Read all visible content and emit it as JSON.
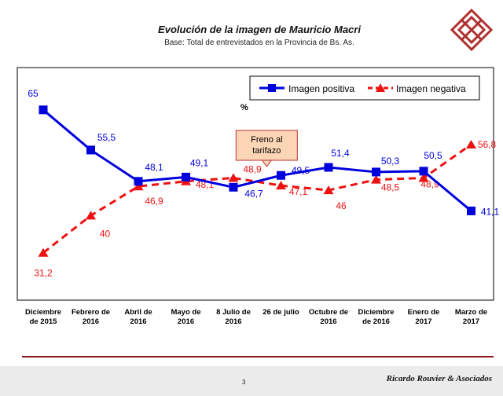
{
  "header": {
    "title": "Evolución de la imagen de Mauricio Macri",
    "subtitle": "Base: Total de entrevistados en la Provincia de Bs. As."
  },
  "footer": {
    "page_number": "3",
    "brand": "Ricardo Rouvier & Asociados"
  },
  "colors": {
    "positive": "#0000dd",
    "negative": "#ee1111",
    "brand": "#b03030",
    "callout_fill": "#fcd5b4",
    "callout_border": "#c0504d"
  },
  "chart_data": {
    "type": "line",
    "unit_label": "%",
    "categories": [
      [
        "Diciembre",
        "de 2015"
      ],
      [
        "Febrero de",
        "2016"
      ],
      [
        "Abril de",
        "2016"
      ],
      [
        "Mayo de",
        "2016"
      ],
      [
        "8 Julio de",
        "2016"
      ],
      [
        "26 de julio",
        ""
      ],
      [
        "Octubre de",
        "2016"
      ],
      [
        "Diciembre",
        "de 2016"
      ],
      [
        "Enero de",
        "2017"
      ],
      [
        "Marzo de",
        "2017"
      ]
    ],
    "series": [
      {
        "name": "Imagen positiva",
        "values": [
          65,
          55.5,
          48.1,
          49.1,
          46.7,
          49.5,
          51.4,
          50.3,
          50.5,
          41.1
        ],
        "labels": [
          "65",
          "55,5",
          "48,1",
          "49,1",
          "46,7",
          "49,5",
          "51,4",
          "50,3",
          "50,5",
          "41,1"
        ]
      },
      {
        "name": "Imagen negativa",
        "values": [
          31.2,
          40,
          46.9,
          48.1,
          48.9,
          47.1,
          46,
          48.5,
          48.9,
          56.8
        ],
        "labels": [
          "31,2",
          "40",
          "46,9",
          "48,1",
          "48,9",
          "47,1",
          "46",
          "48,5",
          "48,9",
          "56,8"
        ]
      }
    ],
    "annotations": [
      {
        "text_lines": [
          "Freno al",
          "tarifazo"
        ],
        "category_index": 4.7
      }
    ],
    "ylim": [
      20,
      75
    ],
    "legend": "top-right",
    "grid": false
  }
}
